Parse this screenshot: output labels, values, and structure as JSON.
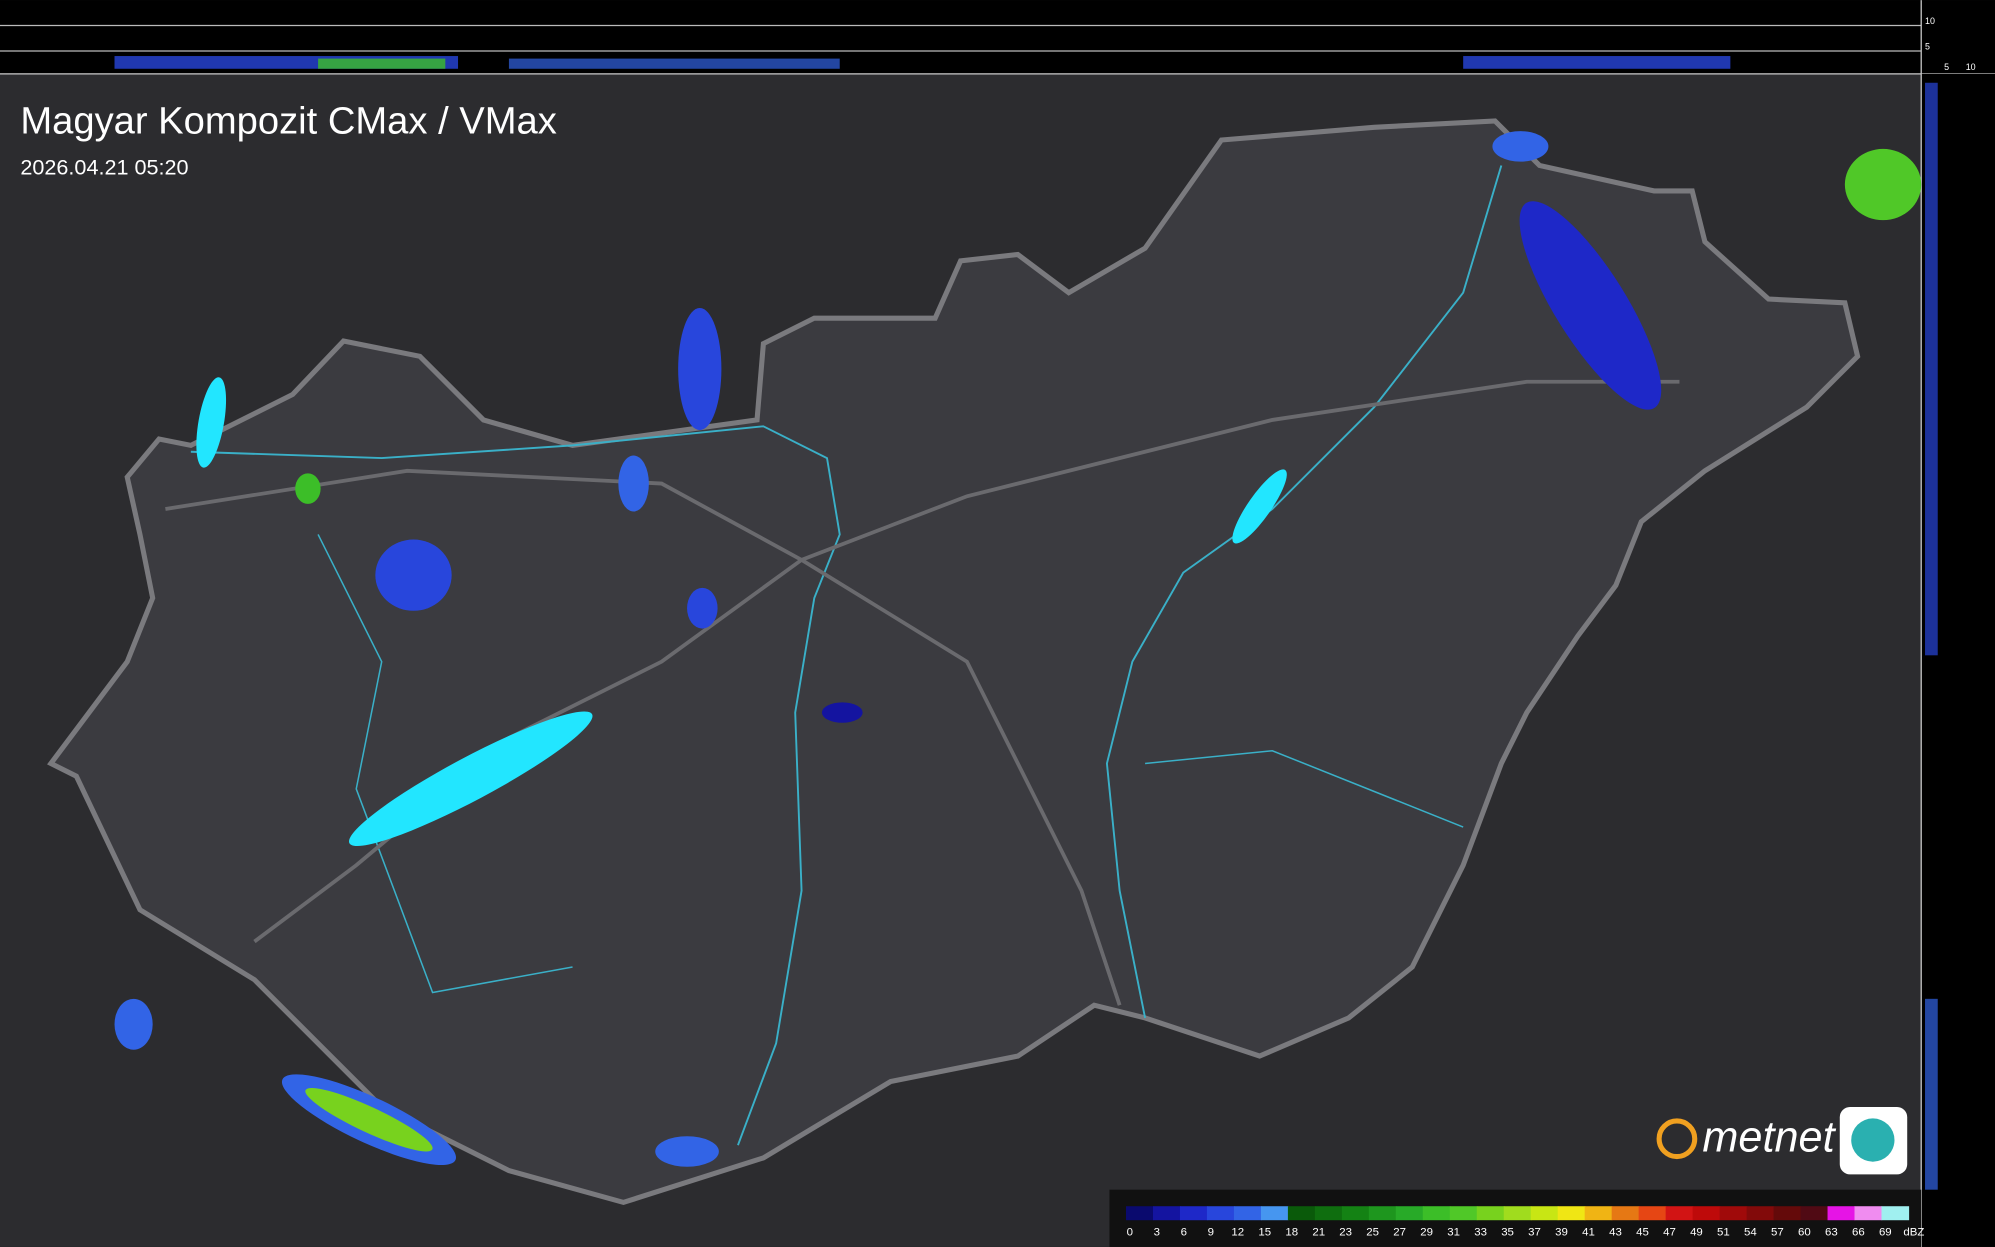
{
  "header": {
    "title": "Magyar Kompozit CMax / VMax",
    "timestamp": "2026.04.21 05:20"
  },
  "side_scale": {
    "top": [
      "10",
      "5"
    ],
    "bottom": [
      "5",
      "10"
    ]
  },
  "logo": {
    "text": "metnet"
  },
  "legend": {
    "unit": "dBZ",
    "items": [
      {
        "label": 0,
        "color": "#0a0a6e"
      },
      {
        "label": 3,
        "color": "#1414a0"
      },
      {
        "label": 6,
        "color": "#1e28c8"
      },
      {
        "label": 9,
        "color": "#2846dc"
      },
      {
        "label": 12,
        "color": "#3264e6"
      },
      {
        "label": 15,
        "color": "#4696f0"
      },
      {
        "label": 18,
        "color": "#0a5a0a"
      },
      {
        "label": 21,
        "color": "#0f6e0f"
      },
      {
        "label": 23,
        "color": "#148214"
      },
      {
        "label": 25,
        "color": "#1e961e"
      },
      {
        "label": 27,
        "color": "#28aa28"
      },
      {
        "label": 29,
        "color": "#3cbe28"
      },
      {
        "label": 31,
        "color": "#50c828"
      },
      {
        "label": 33,
        "color": "#78d21e"
      },
      {
        "label": 35,
        "color": "#a0dc1e"
      },
      {
        "label": 37,
        "color": "#c8e614"
      },
      {
        "label": 39,
        "color": "#f0e614"
      },
      {
        "label": 41,
        "color": "#f0b414"
      },
      {
        "label": 43,
        "color": "#e67814"
      },
      {
        "label": 45,
        "color": "#e64614"
      },
      {
        "label": 47,
        "color": "#d21414"
      },
      {
        "label": 49,
        "color": "#be0a0a"
      },
      {
        "label": 51,
        "color": "#a00a0a"
      },
      {
        "label": 54,
        "color": "#820a0a"
      },
      {
        "label": 57,
        "color": "#640a0a"
      },
      {
        "label": 60,
        "color": "#500a14"
      },
      {
        "label": 63,
        "color": "#e614e6"
      },
      {
        "label": 66,
        "color": "#f08cf0"
      },
      {
        "label": 69,
        "color": "#a0f0f0"
      }
    ]
  }
}
